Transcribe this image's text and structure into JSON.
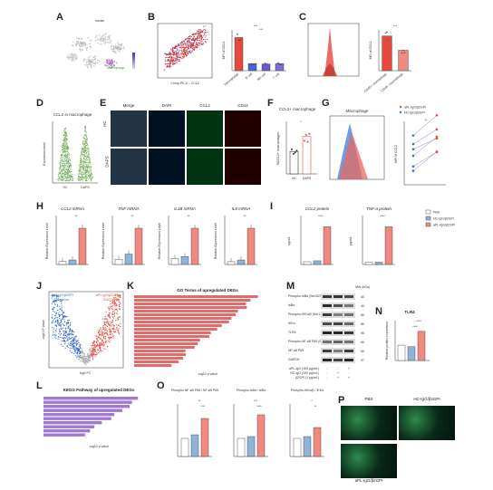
{
  "labels": [
    "A",
    "B",
    "C",
    "D",
    "E",
    "F",
    "G",
    "H",
    "I",
    "J",
    "K",
    "L",
    "M",
    "N",
    "O",
    "P"
  ],
  "A": {
    "title": "mouse",
    "cluster_label": "Macrophage"
  },
  "B": {
    "categories": [
      "Macrophage",
      "B cell",
      "NK cell",
      "T cell"
    ],
    "values": [
      6.5,
      1.4,
      1.3,
      1.4
    ],
    "ylabel": "MFI of CCL2",
    "sig": [
      "***",
      "***",
      "***"
    ]
  },
  "C": {
    "categories": [
      "CD45+ macrophage",
      "CD45- macrophage"
    ],
    "values": [
      8.5,
      5.0
    ],
    "ylabel": "MFI of CCL2",
    "sig": "***"
  },
  "D": {
    "title": "CCL2 in macrophage",
    "ylabel": "Expression level",
    "groups": [
      "HC",
      "DAPS"
    ]
  },
  "E": {
    "cols": [
      "Merge",
      "DAPI",
      "CCL2",
      "CD14"
    ],
    "rows": [
      "HC",
      "DAPS"
    ]
  },
  "F": {
    "title": "CCL2+ macrophage",
    "ylabel": "%CCL2+ macrophages",
    "groups": [
      "HC",
      "DAPS"
    ],
    "values": [
      4.5,
      7.5
    ],
    "sig": "*"
  },
  "G": {
    "title": "Macrophage",
    "legend": [
      "aPL-IgG/β2GPI",
      "HC-IgG/β2GPI"
    ],
    "ylabel": "MFI of CCL2",
    "sig": "**"
  },
  "H": {
    "titles": [
      "CCL2 mRNA",
      "TNF mRNA",
      "IL1B mRNA",
      "IL6 mRNA"
    ],
    "ylabel": "Relative Expression Level",
    "values": [
      [
        1,
        1.5,
        12
      ],
      [
        1,
        2,
        7
      ],
      [
        1,
        1.3,
        6
      ],
      [
        1,
        1.6,
        13
      ]
    ]
  },
  "I": {
    "titles": [
      "CCL2 protein",
      "TNF-α protein"
    ],
    "ylabels": [
      "pg/mL",
      "pg/mL"
    ],
    "legend": [
      "PBS",
      "HC-IgG/β2GPI",
      "aPL-IgG/β2GPI"
    ],
    "values": [
      [
        150,
        200,
        2050
      ],
      [
        60,
        60,
        1000
      ]
    ],
    "sig": "****"
  },
  "J": {
    "left": "HC-IgG/β2GPI",
    "right": "aPL-IgG/β2GPI",
    "left_count": "1128 genes",
    "right_count": "3167 genes",
    "xlabel": "log2 FC",
    "ylabel": "-log10 P value"
  },
  "K": {
    "title": "GO Terms of upregulated DEGs",
    "xlabel": "-log10 p value",
    "n_bars": 20
  },
  "L": {
    "title": "KEGG Pathway of upregulated DEGs",
    "xlabel": "-log10 p value",
    "n_bars": 10
  },
  "M": {
    "header": "MW (kDa)",
    "bands": [
      [
        "Phospho-IκBα (Ser32/36)",
        "40"
      ],
      [
        "IκBα",
        "40"
      ],
      [
        "Phospho-IKKα/β (Ser176/180)",
        "85"
      ],
      [
        "IKKα",
        "85"
      ],
      [
        "TLR4",
        "95"
      ],
      [
        "Phospho-NF-κB P65 (Ser536)",
        "65"
      ],
      [
        "NF-κB P65",
        "65"
      ],
      [
        "GAPDH",
        "37"
      ]
    ],
    "treat": [
      "aPL-IgG (100 μg/mL)",
      "HC-IgG (100 μg/mL)",
      "β2GPI (1 μg/mL)"
    ],
    "signs": [
      [
        "-",
        "-",
        "+"
      ],
      [
        "-",
        "+",
        "-"
      ],
      [
        "-",
        "+",
        "+"
      ]
    ]
  },
  "N": {
    "title": "TLR4",
    "ylabel": "Relative protein expression",
    "values": [
      1,
      0.9,
      1.9
    ],
    "sig": [
      "****",
      "****"
    ]
  },
  "O": {
    "titles": [
      "Phospho-NF-κB P65 / NF-κB P65",
      "Phospho-IκBα / IκBα",
      "Phospho-IKKα/β / IKKα"
    ],
    "values": [
      [
        1.0,
        1.2,
        2.1
      ],
      [
        1.0,
        1.1,
        2.3
      ],
      [
        1.0,
        1.1,
        1.6
      ]
    ],
    "sig": [
      [
        "**",
        "***"
      ],
      [
        "***",
        "****"
      ],
      [
        "*",
        "**"
      ]
    ]
  },
  "P": {
    "labels": [
      "PBS",
      "HC-IgG/β2GPI",
      "aPL-IgG/β2GPI"
    ]
  },
  "colors": {
    "pbs": "#ffffff",
    "hc": "#8fb4d8",
    "apl": "#f08a80",
    "red": "#e64a3f",
    "blue": "#3a6bc4",
    "purple": "#b07fcf"
  }
}
